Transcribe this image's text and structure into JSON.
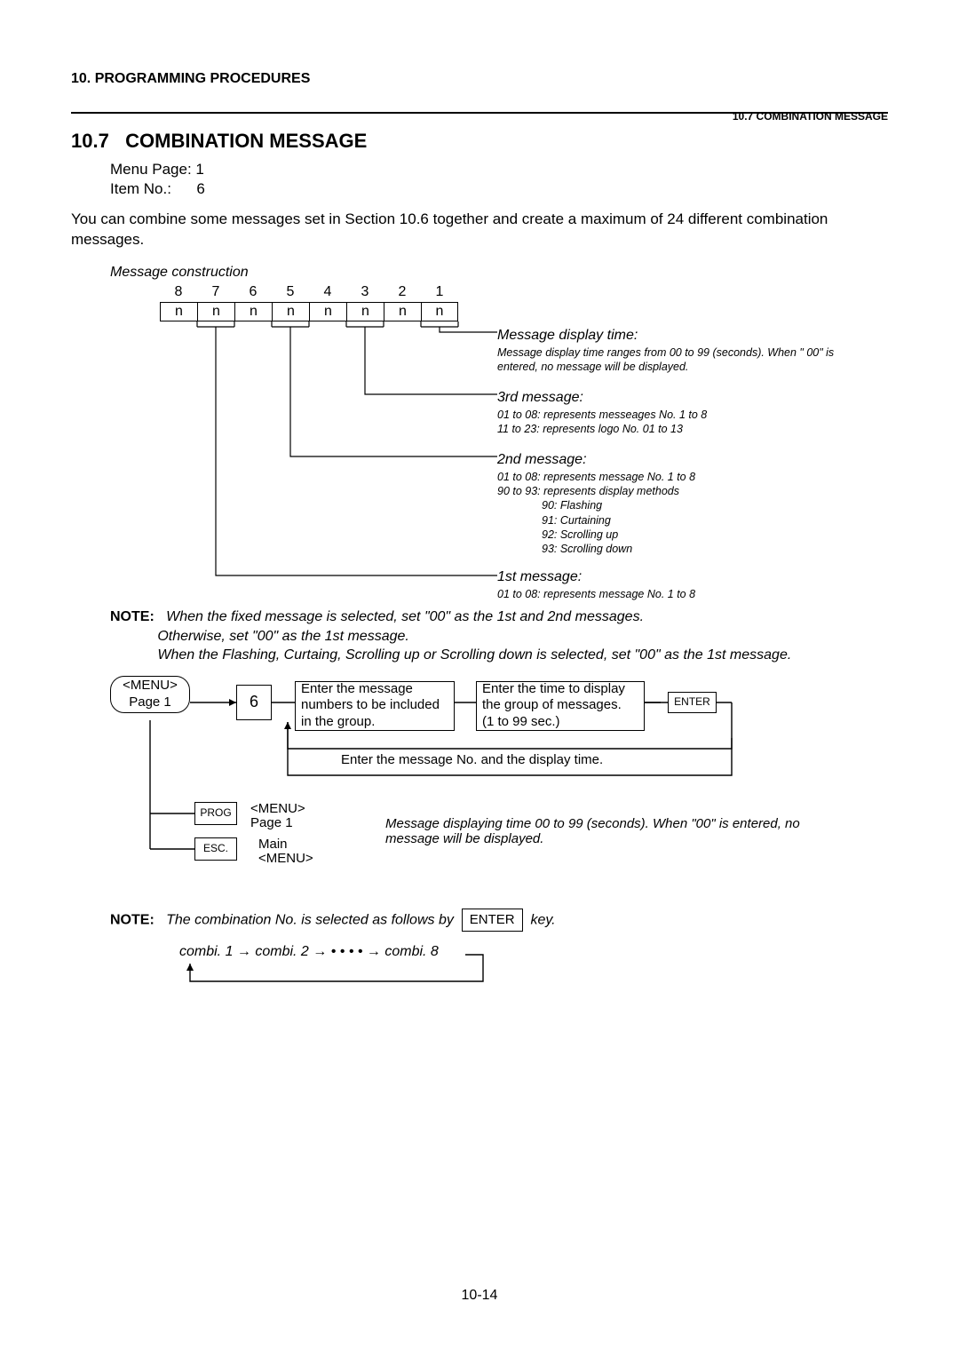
{
  "header": {
    "chapter": "10.   PROGRAMMING PROCEDURES",
    "section_right": "10.7 COMBINATION MESSAGE"
  },
  "title": {
    "number": "10.7",
    "text": "COMBINATION MESSAGE"
  },
  "menu_page_label": "Menu Page:",
  "menu_page_value": "1",
  "item_no_label": "Item No.:",
  "item_no_value": "6",
  "intro": "You can combine some messages set in Section 10.6 together and create a maximum of 24 different combination messages.",
  "mc_caption": "Message construction",
  "mc_cols": [
    "8",
    "7",
    "6",
    "5",
    "4",
    "3",
    "2",
    "1"
  ],
  "mc_cells": [
    "n",
    "n",
    "n",
    "n",
    "n",
    "n",
    "n",
    "n"
  ],
  "desc": {
    "display_time_ttl": "Message display time:",
    "display_time_body": "Message display time ranges from 00 to 99 (seconds).    When \" 00\"    is entered, no message will be displayed.",
    "third_ttl": "3rd message:",
    "third_l1": "01 to 08:    represents messeages No. 1 to 8",
    "third_l2": "11 to 23:   represents logo No. 01 to 13",
    "second_ttl": "2nd message:",
    "second_l1": "01 to 08:   represents message No. 1 to 8",
    "second_l2": "90 to 93:    represents display methods",
    "second_l3": "90:   Flashing",
    "second_l4": "91:   Curtaining",
    "second_l5": "92:   Scrolling up",
    "second_l6": "93:   Scrolling down",
    "first_ttl": "1st message:",
    "first_l1": "01 to 08:   represents message No. 1 to 8"
  },
  "note_label": "NOTE:",
  "note1_l1": "When the fixed message is selected, set \"00\" as the 1st and 2nd messages.",
  "note1_l2": "Otherwise, set \"00\" as the 1st message.",
  "note1_l3": "When the Flashing, Curtaing, Scrolling up or Scrolling down is selected, set \"00\" as the 1st message.",
  "flow": {
    "menu_box": "<MENU>\nPage 1",
    "six": "6",
    "step1": "Enter the message numbers to be included in the group.",
    "step2": "Enter the time to display the group of messages.\n(1 to 99 sec.)",
    "enter": "ENTER",
    "under": "Enter the message No. and the display time.",
    "prog": "PROG",
    "esc": "ESC.",
    "menu_p1_lbl": "<MENU>\nPage 1",
    "main_menu_lbl": "Main\n<MENU>"
  },
  "display_note": "Message displaying time 00 to 99 (seconds).   When \"00\" is entered, no message will be displayed.",
  "note2_text_a": "The combination No. is selected as follows by",
  "note2_enter": "ENTER",
  "note2_text_b": "key.",
  "combi": {
    "seq": "combi. 1  →  combi. 2  →  • • • •   →  combi. 8"
  },
  "page_number": "10-14"
}
